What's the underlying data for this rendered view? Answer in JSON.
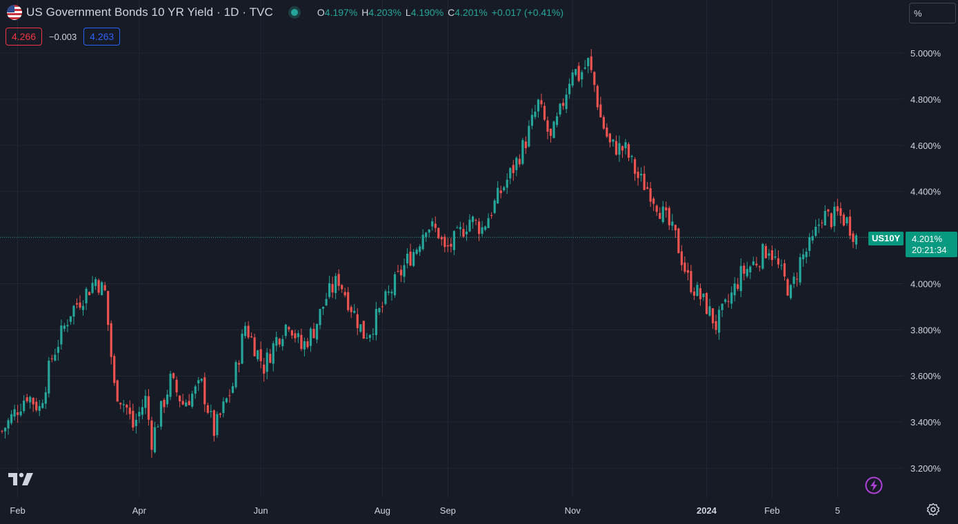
{
  "header": {
    "title": "US Government Bonds 10 YR Yield · 1D · TVC",
    "ohlc": {
      "o_label": "O",
      "o": "4.197%",
      "h_label": "H",
      "h": "4.203%",
      "l_label": "L",
      "l": "4.190%",
      "c_label": "C",
      "c": "4.201%",
      "change": "+0.017 (+0.41%)"
    }
  },
  "trade": {
    "sell": "4.266",
    "spread": "−0.003",
    "buy": "4.263"
  },
  "scale_toggle": "%",
  "last_price": {
    "symbol": "US10Y",
    "value": "4.201%",
    "countdown": "20:21:34"
  },
  "icons": {
    "flag": "us-flag-icon",
    "status": "market-open-dot-icon",
    "logo": "tradingview-logo-icon",
    "bolt": "lightning-icon",
    "settings": "gear-icon"
  },
  "colors": {
    "background": "#171b26",
    "up": "#26a69a",
    "down": "#ef5350",
    "grid": "#232733",
    "text": "#d1d4dc"
  },
  "chart_data": {
    "type": "candlestick",
    "title": "US Government Bonds 10 YR Yield",
    "ylim": [
      3.14,
      5.17
    ],
    "y_ticks": [
      "5.000%",
      "4.800%",
      "4.600%",
      "4.400%",
      "4.201%",
      "4.000%",
      "3.800%",
      "3.600%",
      "3.400%",
      "3.200%"
    ],
    "y_tick_values": [
      5.0,
      4.8,
      4.6,
      4.4,
      4.0,
      3.8,
      3.6,
      3.4,
      3.2
    ],
    "x_ticks": [
      "Feb",
      "Apr",
      "Jun",
      "Aug",
      "Sep",
      "Nov",
      "2024",
      "Feb",
      "5"
    ],
    "x_tick_bars": [
      5,
      44,
      83,
      122,
      143,
      183,
      226,
      247,
      268
    ],
    "bars_count": 275,
    "close_path": [
      [
        0,
        3.36
      ],
      [
        8,
        3.52
      ],
      [
        12,
        3.46
      ],
      [
        16,
        3.68
      ],
      [
        22,
        3.88
      ],
      [
        28,
        3.98
      ],
      [
        30,
        4.02
      ],
      [
        33,
        3.96
      ],
      [
        36,
        3.55
      ],
      [
        40,
        3.46
      ],
      [
        42,
        3.38
      ],
      [
        46,
        3.5
      ],
      [
        48,
        3.32
      ],
      [
        54,
        3.58
      ],
      [
        58,
        3.48
      ],
      [
        64,
        3.56
      ],
      [
        68,
        3.36
      ],
      [
        74,
        3.56
      ],
      [
        78,
        3.82
      ],
      [
        84,
        3.64
      ],
      [
        88,
        3.76
      ],
      [
        92,
        3.84
      ],
      [
        96,
        3.72
      ],
      [
        100,
        3.8
      ],
      [
        104,
        3.94
      ],
      [
        108,
        4.02
      ],
      [
        112,
        3.9
      ],
      [
        116,
        3.78
      ],
      [
        118,
        3.8
      ],
      [
        122,
        3.9
      ],
      [
        126,
        4.0
      ],
      [
        130,
        4.1
      ],
      [
        133,
        4.16
      ],
      [
        136,
        4.26
      ],
      [
        140,
        4.22
      ],
      [
        142,
        4.14
      ],
      [
        146,
        4.2
      ],
      [
        150,
        4.28
      ],
      [
        154,
        4.24
      ],
      [
        160,
        4.4
      ],
      [
        164,
        4.5
      ],
      [
        168,
        4.62
      ],
      [
        172,
        4.78
      ],
      [
        176,
        4.62
      ],
      [
        179,
        4.74
      ],
      [
        183,
        4.94
      ],
      [
        185,
        4.9
      ],
      [
        188,
        4.96
      ],
      [
        190,
        4.86
      ],
      [
        192,
        4.72
      ],
      [
        195,
        4.6
      ],
      [
        200,
        4.58
      ],
      [
        204,
        4.46
      ],
      [
        208,
        4.4
      ],
      [
        212,
        4.3
      ],
      [
        216,
        4.2
      ],
      [
        220,
        4.02
      ],
      [
        226,
        3.9
      ],
      [
        229,
        3.82
      ],
      [
        233,
        3.92
      ],
      [
        237,
        4.04
      ],
      [
        242,
        4.1
      ],
      [
        246,
        4.16
      ],
      [
        250,
        4.04
      ],
      [
        253,
        3.96
      ],
      [
        256,
        4.1
      ],
      [
        260,
        4.18
      ],
      [
        263,
        4.3
      ],
      [
        266,
        4.28
      ],
      [
        268,
        4.3
      ],
      [
        271,
        4.27
      ],
      [
        274,
        4.201
      ]
    ]
  }
}
